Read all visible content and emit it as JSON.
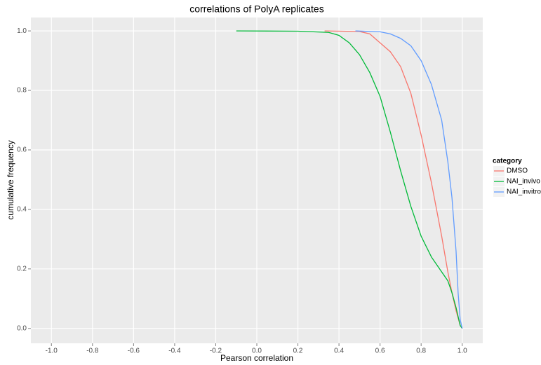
{
  "chart_data": {
    "type": "line",
    "title": "correlations of PolyA replicates",
    "x_label": "Pearson correlation",
    "y_label": "cumulative frequency",
    "legend_title": "category",
    "legend_position": "right",
    "grid": true,
    "xlim": [
      -1.1,
      1.1
    ],
    "ylim": [
      -0.05,
      1.045
    ],
    "xticks": [
      {
        "value": -1.0,
        "label": "-1.0"
      },
      -0.8,
      -0.6,
      -0.4,
      -0.2,
      {
        "value": 0,
        "label": "0.0"
      },
      0.2,
      0.4,
      0.6,
      0.8,
      {
        "value": 1.0,
        "label": "1.0"
      }
    ],
    "yticks": [
      {
        "value": 0,
        "label": "0.0"
      },
      0.2,
      0.4,
      0.6,
      0.8,
      {
        "value": 1.0,
        "label": "1.0"
      }
    ],
    "series": [
      {
        "name": "DMSO",
        "color": "#f8766d",
        "x": [
          0.33,
          0.5,
          0.55,
          0.6,
          0.65,
          0.7,
          0.75,
          0.8,
          0.85,
          0.9,
          0.93,
          0.95,
          0.97,
          0.99,
          1.0
        ],
        "values": [
          1.0,
          0.998,
          0.99,
          0.96,
          0.93,
          0.88,
          0.79,
          0.65,
          0.49,
          0.31,
          0.19,
          0.12,
          0.06,
          0.01,
          0.0
        ]
      },
      {
        "name": "NAI_invivo",
        "color": "#00ba38",
        "x": [
          -0.1,
          0.2,
          0.35,
          0.4,
          0.45,
          0.5,
          0.55,
          0.6,
          0.65,
          0.7,
          0.75,
          0.8,
          0.85,
          0.9,
          0.93,
          0.95,
          0.97,
          0.99,
          1.0
        ],
        "values": [
          1.0,
          0.999,
          0.995,
          0.985,
          0.96,
          0.92,
          0.86,
          0.78,
          0.66,
          0.53,
          0.41,
          0.31,
          0.24,
          0.19,
          0.16,
          0.12,
          0.07,
          0.01,
          0.0
        ]
      },
      {
        "name": "NAI_invitro",
        "color": "#619cff",
        "x": [
          0.48,
          0.6,
          0.65,
          0.7,
          0.75,
          0.8,
          0.85,
          0.9,
          0.93,
          0.95,
          0.97,
          0.98,
          0.99,
          1.0
        ],
        "values": [
          1.0,
          0.997,
          0.99,
          0.975,
          0.95,
          0.9,
          0.82,
          0.7,
          0.56,
          0.44,
          0.26,
          0.12,
          0.03,
          0.0
        ]
      }
    ]
  }
}
